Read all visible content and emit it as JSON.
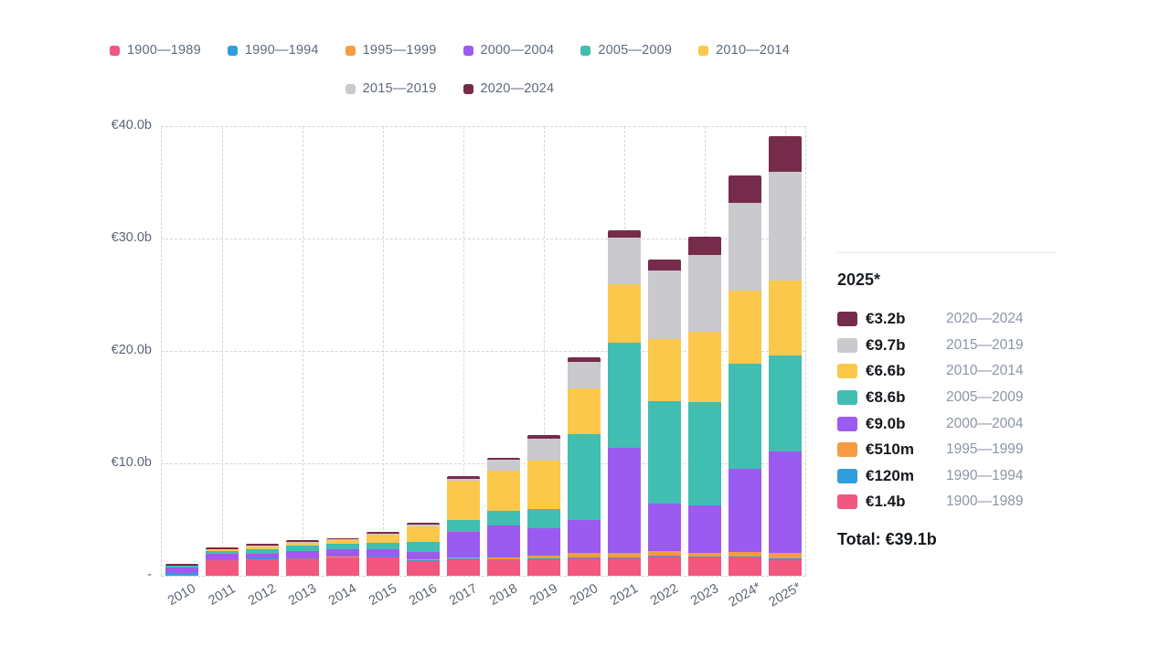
{
  "chart_data": {
    "type": "bar",
    "stacked": true,
    "title": "",
    "x": [
      "2010",
      "2011",
      "2012",
      "2013",
      "2014",
      "2015",
      "2016",
      "2017",
      "2018",
      "2019",
      "2020",
      "2021",
      "2022",
      "2023",
      "2024*",
      "2025*"
    ],
    "ylim": [
      0,
      40
    ],
    "grid": "dashed",
    "legend_position": "top-center",
    "yticks": [
      {
        "value": 40,
        "label": "€40.0b"
      },
      {
        "value": 30,
        "label": "€30.0b"
      },
      {
        "value": 20,
        "label": "€20.0b"
      },
      {
        "value": 10,
        "label": "€10.0b"
      },
      {
        "value": 0,
        "label": "-"
      }
    ],
    "unit": "billions EUR",
    "series": [
      {
        "name": "1900—1989",
        "color": "#f3567e",
        "values": [
          0.03,
          1.4,
          1.45,
          1.55,
          1.6,
          1.65,
          1.3,
          1.45,
          1.4,
          1.45,
          1.55,
          1.55,
          1.7,
          1.6,
          1.65,
          1.4
        ]
      },
      {
        "name": "1990—1994",
        "color": "#2f9dde",
        "values": [
          0.2,
          0.05,
          0.08,
          0.05,
          0.05,
          0.05,
          0.08,
          0.08,
          0.08,
          0.08,
          0.1,
          0.1,
          0.1,
          0.1,
          0.1,
          0.12
        ]
      },
      {
        "name": "1995—1999",
        "color": "#f79c40",
        "values": [
          0.02,
          0.03,
          0.04,
          0.05,
          0.05,
          0.05,
          0.05,
          0.1,
          0.12,
          0.25,
          0.4,
          0.35,
          0.4,
          0.35,
          0.35,
          0.51
        ]
      },
      {
        "name": "2000—2004",
        "color": "#9c5bf0",
        "values": [
          0.5,
          0.45,
          0.42,
          0.55,
          0.65,
          0.6,
          0.7,
          2.3,
          2.85,
          2.45,
          2.95,
          9.4,
          4.2,
          4.2,
          7.45,
          9.0
        ]
      },
      {
        "name": "2005—2009",
        "color": "#3fbeb1",
        "values": [
          0.12,
          0.25,
          0.4,
          0.5,
          0.5,
          0.55,
          0.87,
          1.05,
          1.3,
          1.7,
          7.6,
          9.3,
          9.1,
          9.2,
          9.35,
          8.6
        ]
      },
      {
        "name": "2010—2014",
        "color": "#fbc84c",
        "values": [
          0.02,
          0.1,
          0.25,
          0.25,
          0.32,
          0.75,
          1.4,
          3.5,
          3.6,
          4.3,
          4.1,
          5.2,
          5.6,
          6.3,
          6.5,
          6.6
        ]
      },
      {
        "name": "2015—2019",
        "color": "#c9c9ce",
        "values": [
          0.04,
          0.07,
          0.05,
          0.05,
          0.05,
          0.1,
          0.12,
          0.15,
          0.95,
          2.0,
          2.3,
          4.2,
          6.1,
          6.8,
          7.8,
          9.7
        ]
      },
      {
        "name": "2020—2024",
        "color": "#772b4a",
        "values": [
          0.12,
          0.2,
          0.2,
          0.15,
          0.12,
          0.13,
          0.22,
          0.27,
          0.22,
          0.28,
          0.45,
          0.65,
          0.95,
          1.6,
          2.4,
          3.2
        ]
      }
    ]
  },
  "panel": {
    "title": "2025*",
    "rows": [
      {
        "value": "€3.2b",
        "period": "2020—2024",
        "color": "#772b4a"
      },
      {
        "value": "€9.7b",
        "period": "2015—2019",
        "color": "#c9c9ce"
      },
      {
        "value": "€6.6b",
        "period": "2010—2014",
        "color": "#fbc84c"
      },
      {
        "value": "€8.6b",
        "period": "2005—2009",
        "color": "#3fbeb1"
      },
      {
        "value": "€9.0b",
        "period": "2000—2004",
        "color": "#9c5bf0"
      },
      {
        "value": "€510m",
        "period": "1995—1999",
        "color": "#f79c40"
      },
      {
        "value": "€120m",
        "period": "1990—1994",
        "color": "#2f9dde"
      },
      {
        "value": "€1.4b",
        "period": "1900—1989",
        "color": "#f3567e"
      }
    ],
    "total_label": "Total: €39.1b"
  }
}
